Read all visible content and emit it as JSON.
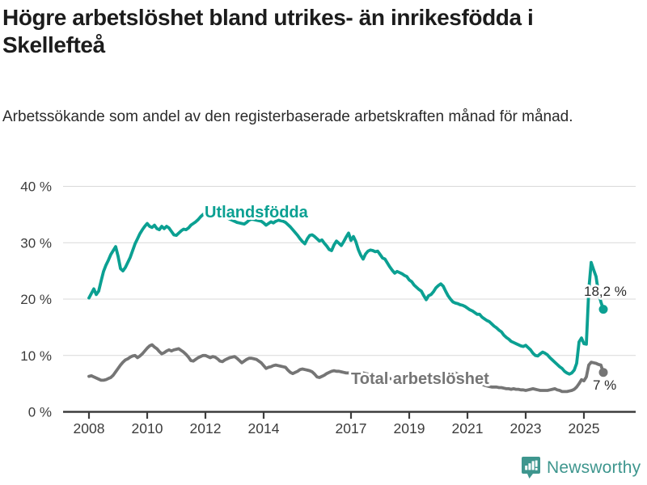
{
  "title": "Högre arbetslöshet bland utrikes- än inrikesfödda i Skellefteå",
  "subtitle": "Arbetssökande som andel av den registerbaserade arbetskraften månad för månad.",
  "branding": {
    "logo_text": "Newsworthy",
    "logo_icon": "bar-chart-speech-bubble-icon",
    "logo_color": "#3e968e"
  },
  "colors": {
    "foreign_born_series": "#0ba092",
    "total_series": "#757575",
    "annotation_text": "#2b2b2b",
    "grid": "#d9d9d9",
    "axis": "#3d3d3d"
  },
  "chart_data": {
    "type": "line",
    "title": "Högre arbetslöshet bland utrikes- än inrikesfödda i Skellefteå",
    "subtitle": "Arbetssökande som andel av den registerbaserade arbetskraften månad för månad.",
    "x_frequency": "monthly",
    "x_start": "2008-01",
    "x_end": "2025-09",
    "xlim": [
      2008,
      2025.75
    ],
    "ylim": [
      0,
      40
    ],
    "grid": "horizontal",
    "legend_position": "inline-labels",
    "y_tick_labels": [
      "40 %",
      "30 %",
      "20 %",
      "10 %",
      "0 %"
    ],
    "x_tick_labels": [
      "2008",
      "2010",
      "2012",
      "2014",
      "2017",
      "2019",
      "2021",
      "2023",
      "2025"
    ],
    "series": [
      {
        "name": "Utlandsfödda",
        "color": "#0ba092",
        "end_value": 18.2,
        "end_label": "18,2 %",
        "values": [
          20.2,
          21.0,
          21.8,
          20.8,
          21.4,
          23.2,
          24.9,
          26.0,
          26.9,
          27.9,
          28.6,
          29.3,
          27.6,
          25.4,
          25.0,
          25.6,
          26.5,
          27.4,
          28.6,
          29.8,
          30.7,
          31.6,
          32.3,
          32.9,
          33.4,
          32.9,
          32.7,
          33.1,
          32.5,
          32.3,
          32.9,
          32.5,
          32.9,
          32.6,
          32.0,
          31.4,
          31.3,
          31.7,
          32.1,
          32.4,
          32.3,
          32.6,
          33.1,
          33.4,
          33.7,
          34.1,
          34.6,
          35.0,
          35.3,
          35.1,
          34.9,
          35.2,
          35.5,
          35.2,
          34.9,
          34.8,
          34.6,
          34.4,
          34.2,
          34.0,
          33.8,
          33.6,
          33.5,
          33.4,
          33.3,
          33.6,
          34.0,
          34.2,
          34.1,
          34.0,
          33.9,
          33.8,
          33.5,
          33.1,
          33.4,
          33.7,
          33.5,
          33.8,
          34.0,
          33.9,
          33.8,
          33.6,
          33.2,
          32.8,
          32.3,
          31.8,
          31.3,
          30.7,
          30.2,
          29.8,
          30.7,
          31.3,
          31.4,
          31.1,
          30.7,
          30.3,
          30.5,
          29.9,
          29.4,
          28.8,
          28.6,
          29.6,
          30.3,
          29.9,
          29.5,
          30.2,
          31.0,
          31.7,
          30.4,
          31.1,
          30.2,
          28.8,
          27.8,
          27.1,
          28.0,
          28.5,
          28.7,
          28.6,
          28.4,
          28.5,
          27.9,
          27.3,
          27.1,
          26.4,
          25.7,
          25.1,
          24.6,
          24.9,
          24.7,
          24.5,
          24.2,
          24.0,
          23.4,
          23.1,
          22.5,
          22.1,
          21.7,
          21.4,
          20.6,
          19.9,
          20.6,
          20.8,
          21.3,
          22.0,
          22.4,
          22.7,
          22.3,
          21.4,
          20.6,
          20.0,
          19.5,
          19.3,
          19.2,
          19.0,
          18.9,
          18.7,
          18.4,
          18.1,
          17.9,
          17.6,
          17.3,
          17.3,
          16.8,
          16.5,
          16.2,
          16.0,
          15.6,
          15.2,
          14.9,
          14.5,
          14.2,
          13.6,
          13.2,
          12.9,
          12.5,
          12.3,
          12.1,
          11.9,
          11.7,
          11.6,
          11.8,
          11.4,
          11.0,
          10.4,
          10.0,
          9.9,
          10.3,
          10.6,
          10.4,
          10.1,
          9.6,
          9.2,
          8.8,
          8.4,
          8.0,
          7.7,
          7.2,
          6.9,
          6.7,
          6.9,
          7.4,
          8.6,
          12.4,
          13.1,
          12.1,
          12.0,
          21.6,
          26.5,
          25.2,
          24.0,
          21.1,
          19.5,
          18.2
        ]
      },
      {
        "name": "Total arbetslöshet",
        "color": "#757575",
        "end_value": 7.0,
        "end_label": "7 %",
        "values": [
          6.3,
          6.4,
          6.2,
          6.0,
          5.8,
          5.6,
          5.6,
          5.7,
          5.9,
          6.1,
          6.5,
          7.1,
          7.7,
          8.3,
          8.8,
          9.2,
          9.4,
          9.7,
          9.9,
          10.0,
          9.6,
          9.9,
          10.3,
          10.8,
          11.3,
          11.7,
          11.9,
          11.5,
          11.2,
          10.7,
          10.3,
          10.5,
          10.8,
          11.0,
          10.8,
          11.0,
          11.1,
          11.2,
          10.9,
          10.6,
          10.2,
          9.7,
          9.1,
          9.0,
          9.3,
          9.6,
          9.8,
          10.0,
          10.0,
          9.8,
          9.6,
          9.8,
          9.7,
          9.4,
          9.0,
          8.9,
          9.2,
          9.4,
          9.6,
          9.7,
          9.8,
          9.5,
          9.1,
          8.7,
          9.0,
          9.3,
          9.5,
          9.5,
          9.4,
          9.3,
          9.0,
          8.7,
          8.2,
          7.7,
          7.9,
          8.0,
          8.2,
          8.3,
          8.2,
          8.1,
          8.0,
          7.9,
          7.4,
          7.0,
          6.8,
          7.0,
          7.2,
          7.5,
          7.6,
          7.5,
          7.4,
          7.3,
          7.1,
          6.7,
          6.2,
          6.1,
          6.3,
          6.5,
          6.8,
          7.0,
          7.2,
          7.3,
          7.2,
          7.2,
          7.1,
          7.0,
          6.9,
          6.9,
          6.8,
          6.9,
          7.0,
          6.9,
          6.8,
          6.9,
          6.8,
          6.7,
          6.6,
          6.5,
          6.4,
          6.4,
          6.3,
          6.2,
          6.1,
          6.0,
          5.9,
          5.8,
          5.7,
          5.6,
          5.6,
          5.5,
          5.5,
          5.6,
          5.6,
          5.5,
          5.4,
          5.4,
          5.3,
          5.3,
          5.2,
          5.1,
          5.2,
          5.3,
          5.4,
          5.5,
          5.6,
          5.7,
          6.2,
          6.8,
          7.0,
          7.1,
          7.0,
          6.9,
          6.7,
          6.4,
          6.2,
          6.1,
          6.0,
          5.9,
          5.7,
          5.5,
          5.3,
          5.1,
          4.9,
          4.7,
          4.6,
          4.5,
          4.4,
          4.4,
          4.4,
          4.3,
          4.3,
          4.2,
          4.1,
          4.1,
          4.0,
          4.1,
          4.0,
          4.0,
          3.9,
          3.9,
          3.8,
          3.9,
          4.0,
          4.1,
          4.0,
          3.9,
          3.8,
          3.8,
          3.8,
          3.8,
          3.9,
          4.0,
          4.1,
          3.9,
          3.8,
          3.6,
          3.6,
          3.6,
          3.7,
          3.8,
          4.0,
          4.4,
          5.0,
          5.7,
          5.5,
          6.2,
          8.3,
          8.8,
          8.7,
          8.6,
          8.4,
          8.3,
          7.0
        ]
      }
    ]
  }
}
